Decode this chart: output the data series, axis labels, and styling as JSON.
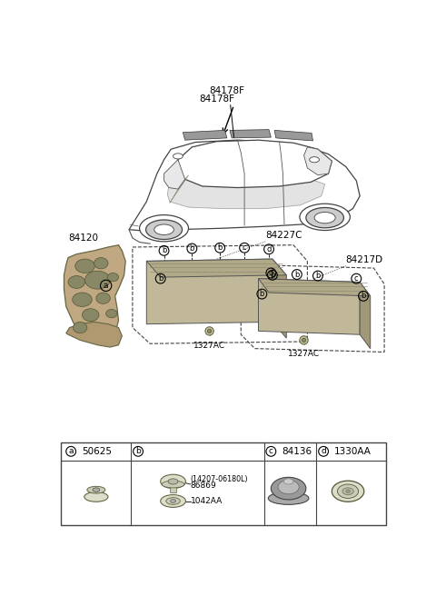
{
  "bg_color": "#ffffff",
  "fig_width": 4.8,
  "fig_height": 6.56,
  "dpi": 100,
  "car_label1": "84178F",
  "car_label2": "84178F",
  "pad1_label": "84227C",
  "pad2_label": "84217D",
  "fw_label": "84120",
  "ac1_label": "1327AC",
  "ac2_label": "1327AC",
  "legend_a_part": "50625",
  "legend_b_sub1": "(14207-06180L)",
  "legend_b_sub2": "86869",
  "legend_b_sub3": "1042AA",
  "legend_c_part": "84136",
  "legend_d_part": "1330AA"
}
